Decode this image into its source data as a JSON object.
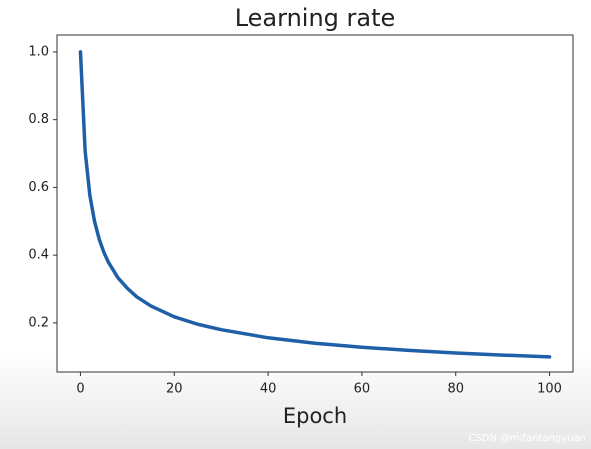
{
  "chart_data": {
    "type": "line",
    "title": "Learning rate",
    "x_label": "Epoch",
    "x": [
      0,
      1,
      2,
      3,
      4,
      5,
      6,
      8,
      10,
      12,
      15,
      20,
      25,
      30,
      40,
      50,
      60,
      70,
      80,
      90,
      100
    ],
    "values": [
      1.0,
      0.707,
      0.577,
      0.5,
      0.447,
      0.408,
      0.378,
      0.333,
      0.302,
      0.277,
      0.25,
      0.218,
      0.196,
      0.18,
      0.156,
      0.14,
      0.128,
      0.119,
      0.111,
      0.105,
      0.0995
    ],
    "color": "#1f5fa8",
    "xlim": [
      -5,
      105
    ],
    "xticks": [
      0,
      20,
      40,
      60,
      80,
      100
    ],
    "ylim": [
      0.055,
      1.05
    ],
    "yticks": [
      0.2,
      0.4,
      0.6,
      0.8,
      {
        "value": 1.0,
        "label": "1.0"
      }
    ],
    "watermark": "CSDN @mifantangyuan"
  }
}
